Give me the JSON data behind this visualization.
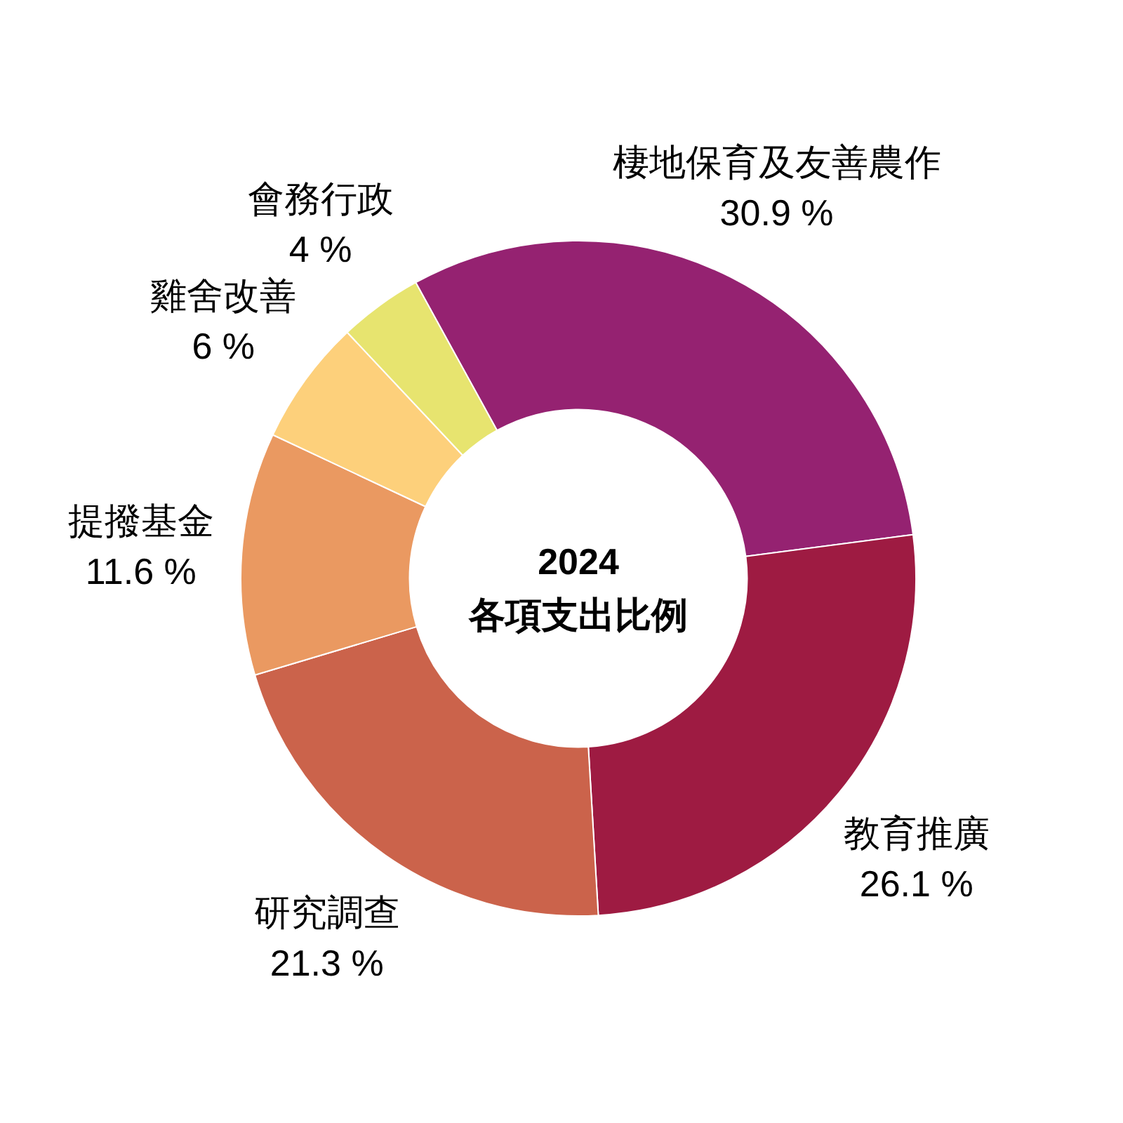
{
  "chart_data": {
    "type": "donut",
    "title": "2024",
    "subtitle": "各項支出比例",
    "categories": [
      "棲地保育及友善農作",
      "教育推廣",
      "研究調查",
      "提撥基金",
      "雞舍改善",
      "會務行政"
    ],
    "values": [
      30.9,
      26.1,
      21.3,
      11.6,
      6,
      4
    ],
    "value_labels": [
      "30.9 %",
      "26.1 %",
      "21.3 %",
      "11.6 %",
      "6 %",
      "4 %"
    ],
    "colors": [
      "#952271",
      "#9e1b42",
      "#cb634b",
      "#ea9961",
      "#fdd07b",
      "#e7e46f"
    ],
    "legend": false
  }
}
